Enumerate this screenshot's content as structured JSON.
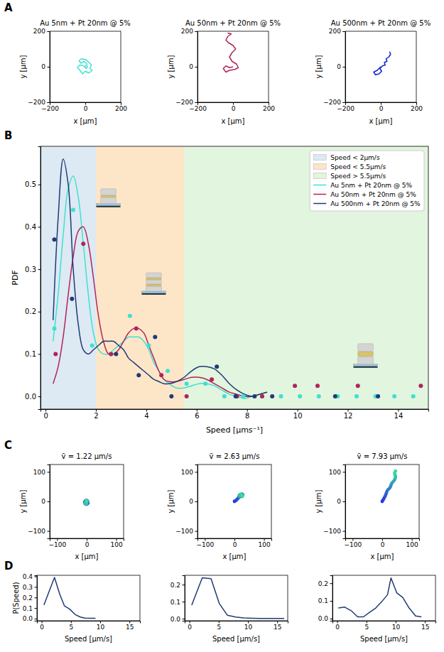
{
  "chart_data": [
    {
      "type": "line",
      "panel_label": "A",
      "title": "Au 5nm + Pt 20nm @ 5%",
      "x_label": "x [μm]",
      "y_label": "y [μm]",
      "xlim": [
        -200,
        200
      ],
      "ylim": [
        -200,
        200
      ],
      "xticks": [
        {
          "value": -200,
          "label": "−200"
        },
        0,
        200
      ],
      "yticks": [
        {
          "value": -200,
          "label": "−200"
        },
        0,
        200
      ],
      "series": [
        {
          "color": "#40e0d0",
          "x": [
            0,
            10,
            -5,
            -25,
            -35,
            -20,
            5,
            20,
            35,
            25,
            40,
            20,
            0,
            -15,
            -30,
            -45,
            -30,
            -10,
            5,
            15
          ],
          "values": [
            0,
            15,
            30,
            20,
            35,
            45,
            40,
            25,
            10,
            -10,
            -20,
            -35,
            -25,
            -40,
            -20,
            -5,
            10,
            5,
            -10,
            5
          ]
        }
      ]
    },
    {
      "type": "line",
      "title": "Au 50nm + Pt 20nm @ 5%",
      "x_label": "x [μm]",
      "y_label": "y [μm]",
      "xlim": [
        -200,
        200
      ],
      "ylim": [
        -200,
        200
      ],
      "xticks": [
        {
          "value": -200,
          "label": "−200"
        },
        0,
        200
      ],
      "yticks": [
        {
          "value": -200,
          "label": "−200"
        },
        0,
        200
      ],
      "series": [
        {
          "color": "#b0245c",
          "x": [
            0,
            -20,
            -40,
            -55,
            -40,
            -20,
            10,
            30,
            20,
            -5,
            -20,
            -5,
            15,
            0,
            -25,
            -40,
            -30,
            -10,
            -30
          ],
          "values": [
            0,
            -5,
            5,
            -10,
            -30,
            -20,
            -15,
            -5,
            15,
            30,
            55,
            80,
            100,
            120,
            135,
            150,
            170,
            185,
            190
          ]
        }
      ]
    },
    {
      "type": "line",
      "title": "Au 500nm + Pt 20nm @ 5%",
      "x_label": "x [μm]",
      "y_label": "y [μm]",
      "xlim": [
        -200,
        200
      ],
      "ylim": [
        -200,
        200
      ],
      "xticks": [
        {
          "value": -200,
          "label": "−200"
        },
        0,
        200
      ],
      "yticks": [
        {
          "value": -200,
          "label": "−200"
        },
        0,
        200
      ],
      "series": [
        {
          "color": "#1020d0",
          "x": [
            0,
            -20,
            -40,
            -30,
            -10,
            5,
            -5,
            10,
            25,
            20,
            35,
            30,
            45,
            55,
            50
          ],
          "values": [
            0,
            -20,
            -30,
            -45,
            -40,
            -25,
            -10,
            5,
            10,
            25,
            30,
            45,
            55,
            70,
            85
          ]
        }
      ]
    },
    {
      "type": "line",
      "panel_label": "B",
      "x_label": "Speed [μms⁻¹]",
      "y_label": "PDF",
      "xlim": [
        -0.2,
        15.2
      ],
      "ylim": [
        -0.03,
        0.59
      ],
      "xticks": [
        0,
        2,
        4,
        6,
        8,
        10,
        12,
        14
      ],
      "yticks": [
        {
          "value": 0,
          "label": "0.0"
        },
        {
          "value": 0.1,
          "label": "0.1"
        },
        {
          "value": 0.2,
          "label": "0.2"
        },
        {
          "value": 0.3,
          "label": "0.3"
        },
        {
          "value": 0.4,
          "label": "0.4"
        },
        {
          "value": 0.5,
          "label": "0.5"
        }
      ],
      "legend": "upper right",
      "bands": [
        {
          "label": "Speed < 2μm/s",
          "range": [
            -0.2,
            2
          ],
          "color": "#dde9f3"
        },
        {
          "label": "Speed < 5.5μm/s",
          "range": [
            2,
            5.5
          ],
          "color": "#fde6c8"
        },
        {
          "label": "Speed > 5.5μm/s",
          "range": [
            5.5,
            15.2
          ],
          "color": "#e2f5de"
        }
      ],
      "series": [
        {
          "name": "Au 5nm + Pt 20nm @ 5%",
          "color": "#40e0d0",
          "line_style": "smooth",
          "x": [
            0.3,
            0.5,
            0.7,
            0.9,
            1.1,
            1.3,
            1.5,
            1.7,
            1.9,
            2.1,
            2.3,
            2.5,
            2.7,
            2.9,
            3.1,
            3.3,
            3.5,
            3.7,
            3.9,
            4.1,
            4.3,
            4.5,
            4.7,
            4.9,
            5.2,
            5.5,
            5.8,
            6.1,
            6.4,
            6.7,
            7.0,
            7.3,
            7.6,
            7.9,
            8.2,
            8.5,
            8.8
          ],
          "values": [
            0.13,
            0.24,
            0.38,
            0.49,
            0.52,
            0.47,
            0.36,
            0.24,
            0.15,
            0.11,
            0.1,
            0.1,
            0.11,
            0.12,
            0.13,
            0.14,
            0.14,
            0.14,
            0.13,
            0.11,
            0.08,
            0.06,
            0.04,
            0.03,
            0.02,
            0.02,
            0.025,
            0.03,
            0.03,
            0.025,
            0.015,
            0.005,
            0.0,
            -0.005,
            0.0,
            0.005,
            0.01
          ]
        },
        {
          "name": "Au 50nm + Pt 20nm @ 5%",
          "color": "#b0245c",
          "line_style": "smooth",
          "x": [
            0.3,
            0.5,
            0.7,
            0.9,
            1.1,
            1.3,
            1.5,
            1.7,
            1.9,
            2.1,
            2.3,
            2.5,
            2.7,
            2.9,
            3.1,
            3.3,
            3.5,
            3.7,
            3.9,
            4.1,
            4.3,
            4.5,
            4.7,
            4.9,
            5.2,
            5.5,
            5.8,
            6.1,
            6.4,
            6.7,
            7.0,
            7.3,
            7.6,
            7.9,
            8.2,
            8.5,
            8.8
          ],
          "values": [
            0.03,
            0.07,
            0.14,
            0.24,
            0.33,
            0.39,
            0.4,
            0.36,
            0.28,
            0.19,
            0.13,
            0.1,
            0.1,
            0.11,
            0.13,
            0.15,
            0.16,
            0.16,
            0.15,
            0.12,
            0.09,
            0.06,
            0.04,
            0.035,
            0.035,
            0.04,
            0.045,
            0.045,
            0.04,
            0.03,
            0.02,
            0.01,
            0.005,
            0.0,
            0.0,
            0.005,
            0.01
          ]
        },
        {
          "name": "Au 500nm + Pt 20nm @ 5%",
          "color": "#1f3a78",
          "line_style": "smooth",
          "x": [
            0.3,
            0.5,
            0.7,
            0.9,
            1.1,
            1.3,
            1.5,
            1.7,
            1.9,
            2.1,
            2.3,
            2.5,
            2.7,
            2.9,
            3.1,
            3.3,
            3.5,
            3.7,
            3.9,
            4.1,
            4.3,
            4.5,
            4.7,
            4.9,
            5.2,
            5.5,
            5.8,
            6.1,
            6.4,
            6.7,
            7.0,
            7.3,
            7.6,
            7.9,
            8.2,
            8.5,
            8.8
          ],
          "values": [
            0.18,
            0.42,
            0.56,
            0.5,
            0.3,
            0.17,
            0.11,
            0.1,
            0.11,
            0.12,
            0.13,
            0.13,
            0.13,
            0.12,
            0.11,
            0.09,
            0.08,
            0.07,
            0.06,
            0.05,
            0.04,
            0.035,
            0.03,
            0.03,
            0.035,
            0.045,
            0.06,
            0.07,
            0.07,
            0.065,
            0.05,
            0.03,
            0.015,
            0.005,
            0.0,
            0.005,
            0.01
          ]
        },
        {
          "type": "scatter",
          "marker": "circle",
          "color": "#40e0d0",
          "x": [
            0.35,
            1.1,
            1.85,
            2.6,
            3.35,
            4.1,
            4.85,
            5.6,
            6.35,
            7.1,
            7.85,
            8.6,
            9.35,
            10.1,
            10.85,
            11.6,
            12.35,
            13.1,
            13.85,
            14.6
          ],
          "values": [
            0.16,
            0.44,
            0.12,
            0.1,
            0.19,
            0.12,
            0.06,
            0.03,
            0.03,
            0,
            0,
            0,
            0,
            0,
            0,
            0,
            0,
            0,
            0,
            0
          ]
        },
        {
          "type": "scatter",
          "marker": "circle",
          "color": "#b0245c",
          "x": [
            0.4,
            1.5,
            2.6,
            3.6,
            4.6,
            5.6,
            6.6,
            7.6,
            8.6,
            9.9,
            10.8,
            12.4,
            14.9
          ],
          "values": [
            0.1,
            0.36,
            0.1,
            0.16,
            0.05,
            0,
            0.04,
            0,
            0,
            0.025,
            0.025,
            0.025,
            0.025
          ]
        },
        {
          "type": "scatter",
          "marker": "circle",
          "color": "#1f3a78",
          "x": [
            0.35,
            1.05,
            2.8,
            3.7,
            4.35,
            5.0,
            6.8,
            7.55,
            8.3,
            9.0,
            11.5,
            13.2
          ],
          "values": [
            0.37,
            0.23,
            0.1,
            0.05,
            0.14,
            0,
            0.07,
            0,
            0,
            0,
            0,
            0
          ]
        }
      ]
    },
    {
      "type": "line",
      "panel_label": "C",
      "title": "v̄ = 1.22 μm/s",
      "x_label": "x [μm]",
      "y_label": "y [μm]",
      "xlim": [
        -125,
        125
      ],
      "ylim": [
        -125,
        125
      ],
      "xticks": [
        {
          "value": -100,
          "label": "−100"
        },
        0,
        100
      ],
      "yticks": [
        {
          "value": -100,
          "label": "−100"
        },
        0,
        100
      ],
      "series": [
        {
          "marker": "circle",
          "x": [
            0,
            2,
            4,
            1,
            -3,
            -5,
            -7,
            -4,
            -1,
            2,
            4,
            1,
            -2,
            -4,
            -6,
            -3,
            0,
            -2,
            1,
            -1
          ],
          "values": [
            0,
            -3,
            -6,
            -9,
            -8,
            -5,
            -2,
            2,
            4,
            2,
            -1,
            -3,
            -1,
            -4,
            -7,
            -10,
            -7,
            -4,
            0,
            2
          ]
        }
      ]
    },
    {
      "type": "line",
      "title": "v̄ = 2.63 μm/s",
      "x_label": "x [μm]",
      "y_label": "y [μm]",
      "xlim": [
        -125,
        125
      ],
      "ylim": [
        -125,
        125
      ],
      "xticks": [
        {
          "value": -100,
          "label": "−100"
        },
        0,
        100
      ],
      "yticks": [
        {
          "value": -100,
          "label": "−100"
        },
        0,
        100
      ],
      "series": [
        {
          "marker": "circle",
          "x": [
            0,
            3,
            6,
            9,
            12,
            14,
            16,
            18,
            20,
            23,
            26,
            28,
            28,
            26,
            22,
            18,
            16,
            18,
            22,
            25,
            26
          ],
          "values": [
            0,
            2,
            4,
            7,
            10,
            13,
            16,
            19,
            22,
            24,
            25,
            23,
            20,
            17,
            16,
            17,
            20,
            23,
            24,
            22,
            19
          ]
        }
      ]
    },
    {
      "type": "line",
      "title": "v̄ = 7.93 μm/s",
      "x_label": "x [μm]",
      "y_label": "y [μm]",
      "xlim": [
        -125,
        125
      ],
      "ylim": [
        -125,
        125
      ],
      "xticks": [
        {
          "value": -100,
          "label": "−100"
        },
        0,
        100
      ],
      "yticks": [
        {
          "value": -100,
          "label": "−100"
        },
        0,
        100
      ],
      "series": [
        {
          "marker": "circle",
          "x": [
            0,
            3,
            6,
            9,
            12,
            14,
            16,
            20,
            25,
            28,
            30,
            33,
            38,
            42,
            44,
            45,
            43,
            42,
            45
          ],
          "values": [
            0,
            5,
            10,
            16,
            22,
            28,
            34,
            40,
            45,
            50,
            56,
            62,
            68,
            73,
            79,
            85,
            91,
            97,
            103
          ]
        }
      ]
    },
    {
      "type": "line",
      "panel_label": "D",
      "x_label": "Speed [μm/s]",
      "y_label": "P(Speed)",
      "xlim": [
        -0.8,
        16.8
      ],
      "ylim": [
        -0.02,
        0.41
      ],
      "xticks": [
        0,
        5,
        10,
        15
      ],
      "yticks": [
        {
          "value": 0,
          "label": "0.0"
        },
        {
          "value": 0.1,
          "label": "0.1"
        },
        {
          "value": 0.2,
          "label": "0.2"
        },
        {
          "value": 0.3,
          "label": "0.3"
        },
        {
          "value": 0.4,
          "label": "0.4"
        }
      ],
      "series": [
        {
          "color": "#1f3b73",
          "x": [
            0.4,
            1.3,
            2.2,
            3.1,
            3.9,
            4.8,
            5.7,
            6.6,
            7.4,
            8.3,
            9.2
          ],
          "values": [
            0.13,
            0.26,
            0.39,
            0.23,
            0.12,
            0.09,
            0.04,
            0.015,
            0.005,
            0.003,
            0.003
          ]
        }
      ]
    },
    {
      "type": "line",
      "x_label": "Speed [μm/s]",
      "xlim": [
        -0.8,
        16.8
      ],
      "ylim": [
        -0.012,
        0.255
      ],
      "xticks": [
        0,
        5,
        10,
        15
      ],
      "yticks": [
        {
          "value": 0,
          "label": "0.0"
        },
        {
          "value": 0.1,
          "label": "0.1"
        },
        {
          "value": 0.2,
          "label": "0.2"
        }
      ],
      "series": [
        {
          "color": "#1f3b73",
          "x": [
            0.4,
            2.2,
            3.7,
            5.1,
            6.5,
            7.9,
            9.3,
            10.7,
            12.1,
            13.5,
            14.9,
            16.2
          ],
          "values": [
            0.08,
            0.24,
            0.235,
            0.09,
            0.02,
            0.01,
            0.005,
            0.003,
            0.002,
            0.002,
            0.002,
            0.002
          ]
        }
      ]
    },
    {
      "type": "line",
      "x_label": "Speed [μm/s]",
      "xlim": [
        -0.8,
        16.8
      ],
      "ylim": [
        -0.012,
        0.245
      ],
      "xticks": [
        0,
        5,
        10,
        15
      ],
      "yticks": [
        {
          "value": 0,
          "label": "0.0"
        },
        {
          "value": 0.1,
          "label": "0.1"
        },
        {
          "value": 0.2,
          "label": "0.2"
        }
      ],
      "series": [
        {
          "color": "#1f3b73",
          "x": [
            0.2,
            1.3,
            2.4,
            3.5,
            4.5,
            5.5,
            6.6,
            7.6,
            8.6,
            9.2,
            10.2,
            11.2,
            12.3,
            13.4,
            14.4
          ],
          "values": [
            0.06,
            0.065,
            0.045,
            0.01,
            0.01,
            0.035,
            0.06,
            0.095,
            0.135,
            0.23,
            0.145,
            0.12,
            0.06,
            0.015,
            0.01
          ]
        }
      ]
    }
  ]
}
